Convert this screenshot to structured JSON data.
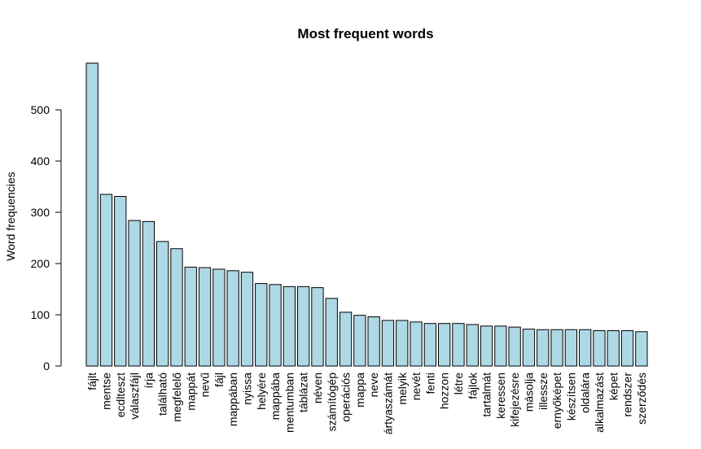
{
  "chart_data": {
    "type": "bar",
    "title": "Most frequent words",
    "xlabel": "",
    "ylabel": "Word frequencies",
    "ylim": [
      0,
      590
    ],
    "yticks": [
      0,
      100,
      200,
      300,
      400,
      500
    ],
    "grid": false,
    "bar_color": "#ADD8E6",
    "categories": [
      "fájlt",
      "mentse",
      "ecdlteszt",
      "válaszfájl",
      "írja",
      "található",
      "megfelelő",
      "mappát",
      "nevű",
      "fájl",
      "mappában",
      "nyissa",
      "helyére",
      "mappába",
      "mentumban",
      "táblázat",
      "néven",
      "számítógép",
      "operációs",
      "mappa",
      "neve",
      "ártyaszámát",
      "melyik",
      "nevét",
      "fenti",
      "hozzon",
      "létre",
      "fájlok",
      "tartalmát",
      "keressen",
      "kifejezésre",
      "másolja",
      "illessze",
      "ernyőképet",
      "készítsen",
      "oldalára",
      "alkalmazást",
      "képet",
      "rendszer",
      "szerződés"
    ],
    "values": [
      591,
      335,
      331,
      284,
      282,
      243,
      229,
      193,
      192,
      189,
      186,
      183,
      161,
      159,
      155,
      155,
      153,
      132,
      105,
      99,
      96,
      89,
      89,
      86,
      83,
      83,
      83,
      81,
      78,
      78,
      76,
      72,
      71,
      71,
      71,
      71,
      69,
      69,
      69,
      67
    ]
  }
}
